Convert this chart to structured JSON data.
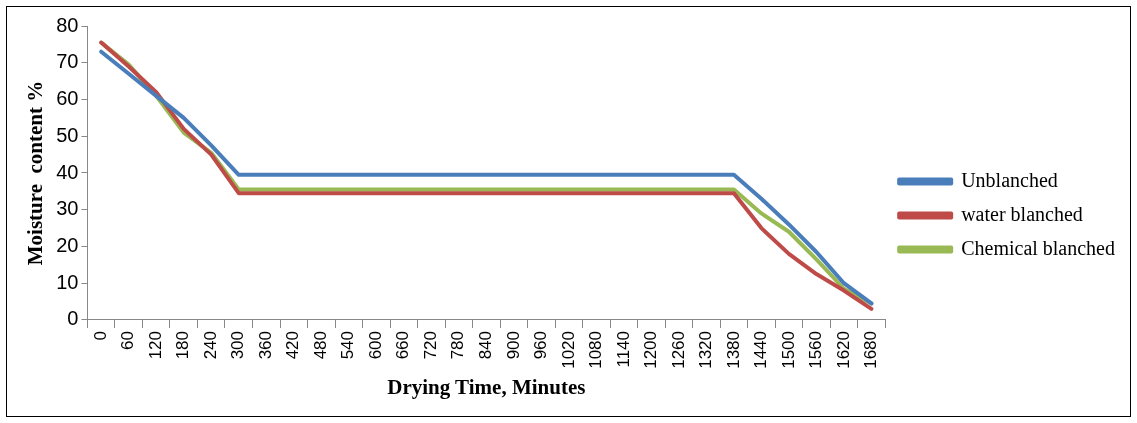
{
  "chart_data": {
    "type": "line",
    "xlabel": "Drying Time, Minutes",
    "ylabel": "Moisture  content %",
    "categories": [
      "0",
      "60",
      "120",
      "180",
      "240",
      "300",
      "360",
      "420",
      "480",
      "540",
      "600",
      "660",
      "720",
      "780",
      "840",
      "900",
      "960",
      "1020",
      "1080",
      "1140",
      "1200",
      "1260",
      "1320",
      "1380",
      "1440",
      "1500",
      "1560",
      "1620",
      "1680"
    ],
    "series": [
      {
        "name": "Unblanched",
        "color": "#4a7ebb",
        "values": [
          73,
          67,
          61,
          55,
          47.5,
          39.5,
          39.5,
          39.5,
          39.5,
          39.5,
          39.5,
          39.5,
          39.5,
          39.5,
          39.5,
          39.5,
          39.5,
          39.5,
          39.5,
          39.5,
          39.5,
          39.5,
          39.5,
          39.5,
          33,
          26,
          18.5,
          10,
          4.5
        ]
      },
      {
        "name": "water blanched",
        "color": "#be4b48",
        "values": [
          75.5,
          69,
          62,
          52,
          45,
          34.5,
          34.5,
          34.5,
          34.5,
          34.5,
          34.5,
          34.5,
          34.5,
          34.5,
          34.5,
          34.5,
          34.5,
          34.5,
          34.5,
          34.5,
          34.5,
          34.5,
          34.5,
          34.5,
          25,
          18,
          12.5,
          8,
          3
        ]
      },
      {
        "name": "Chemical blanched",
        "color": "#98b954",
        "values": [
          75.5,
          69.5,
          61,
          51,
          45.5,
          35.5,
          35.5,
          35.5,
          35.5,
          35.5,
          35.5,
          35.5,
          35.5,
          35.5,
          35.5,
          35.5,
          35.5,
          35.5,
          35.5,
          35.5,
          35.5,
          35.5,
          35.5,
          35.5,
          29,
          24,
          16.5,
          8.5,
          4.5
        ]
      }
    ],
    "ylim": [
      0,
      80
    ],
    "yticks": [
      0,
      10,
      20,
      30,
      40,
      50,
      60,
      70,
      80
    ],
    "grid": false,
    "legend": "right",
    "marker": "none",
    "line_style": "solid"
  }
}
